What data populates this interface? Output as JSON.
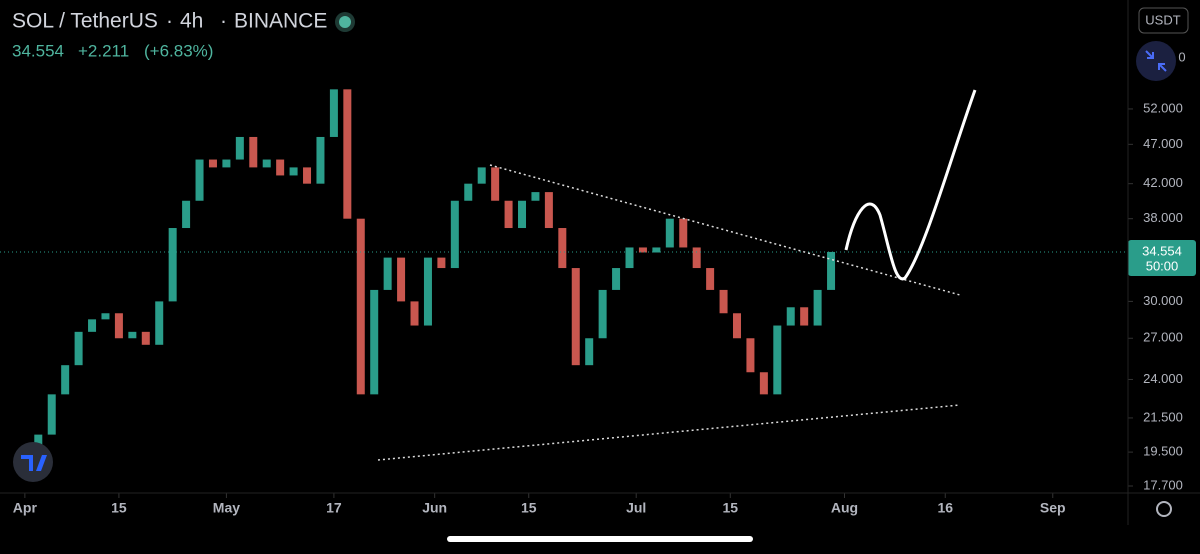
{
  "header": {
    "symbol": "SOL / TetherUS",
    "interval": "4h",
    "exchange": "BINANCE",
    "price": "34.554",
    "change": "+2.211",
    "change_pct": "(+6.83%)",
    "currency": "USDT",
    "top_label": "0"
  },
  "chart_data": {
    "type": "candlestick",
    "log_scale": true,
    "up_color": "#2a9d8a",
    "down_color": "#c9574f",
    "x": [
      0,
      2,
      4,
      6,
      8,
      10,
      12,
      14,
      16,
      18,
      20,
      22,
      24,
      26,
      28,
      30,
      32,
      34,
      36,
      38,
      40,
      42,
      44,
      46,
      48,
      50,
      52,
      54,
      56,
      58,
      60,
      62,
      64,
      66,
      68,
      70,
      72,
      74,
      76,
      78,
      80,
      82,
      84,
      86,
      88,
      90,
      92,
      94,
      96,
      98,
      100,
      102,
      104,
      106,
      108,
      110,
      112,
      114,
      116,
      118,
      120
    ],
    "values": [
      19.5,
      20.5,
      23,
      25,
      27.5,
      28.5,
      29,
      27,
      27.5,
      26.5,
      30,
      37,
      40,
      45,
      44,
      45,
      48,
      44,
      45,
      43,
      44,
      42,
      48,
      55,
      38,
      23,
      31,
      34,
      30,
      28,
      34,
      33,
      40,
      42,
      44,
      40,
      37,
      40,
      41,
      37,
      33,
      25,
      27,
      31,
      33,
      35,
      34.5,
      35,
      38,
      35,
      33,
      31,
      29,
      27,
      24.5,
      23,
      28,
      29.5,
      28,
      31,
      34.554
    ],
    "last_price": 34.554,
    "countdown": "50:00",
    "xlim": [
      -3.7,
      164.2
    ],
    "ylim": [
      17.25,
      71
    ],
    "xticks": [
      {
        "value": 0,
        "label": "Apr"
      },
      {
        "value": 14,
        "label": "15"
      },
      {
        "value": 30,
        "label": "May"
      },
      {
        "value": 46,
        "label": "17"
      },
      {
        "value": 61,
        "label": "Jun"
      },
      {
        "value": 75,
        "label": "15"
      },
      {
        "value": 91,
        "label": "Jul"
      },
      {
        "value": 105,
        "label": "15"
      },
      {
        "value": 122,
        "label": "Aug"
      },
      {
        "value": 137,
        "label": "16"
      },
      {
        "value": 153,
        "label": "Sep"
      }
    ],
    "yticks": [
      {
        "value": 52,
        "label": "52.000"
      },
      {
        "value": 47,
        "label": "47.000"
      },
      {
        "value": 42,
        "label": "42.000"
      },
      {
        "value": 38,
        "label": "38.000"
      },
      {
        "value": 30,
        "label": "30.000"
      },
      {
        "value": 27,
        "label": "27.000"
      },
      {
        "value": 24,
        "label": "24.000"
      },
      {
        "value": 21.5,
        "label": "21.500"
      },
      {
        "value": 19.5,
        "label": "19.500"
      },
      {
        "value": 17.7,
        "label": "17.700"
      }
    ]
  }
}
